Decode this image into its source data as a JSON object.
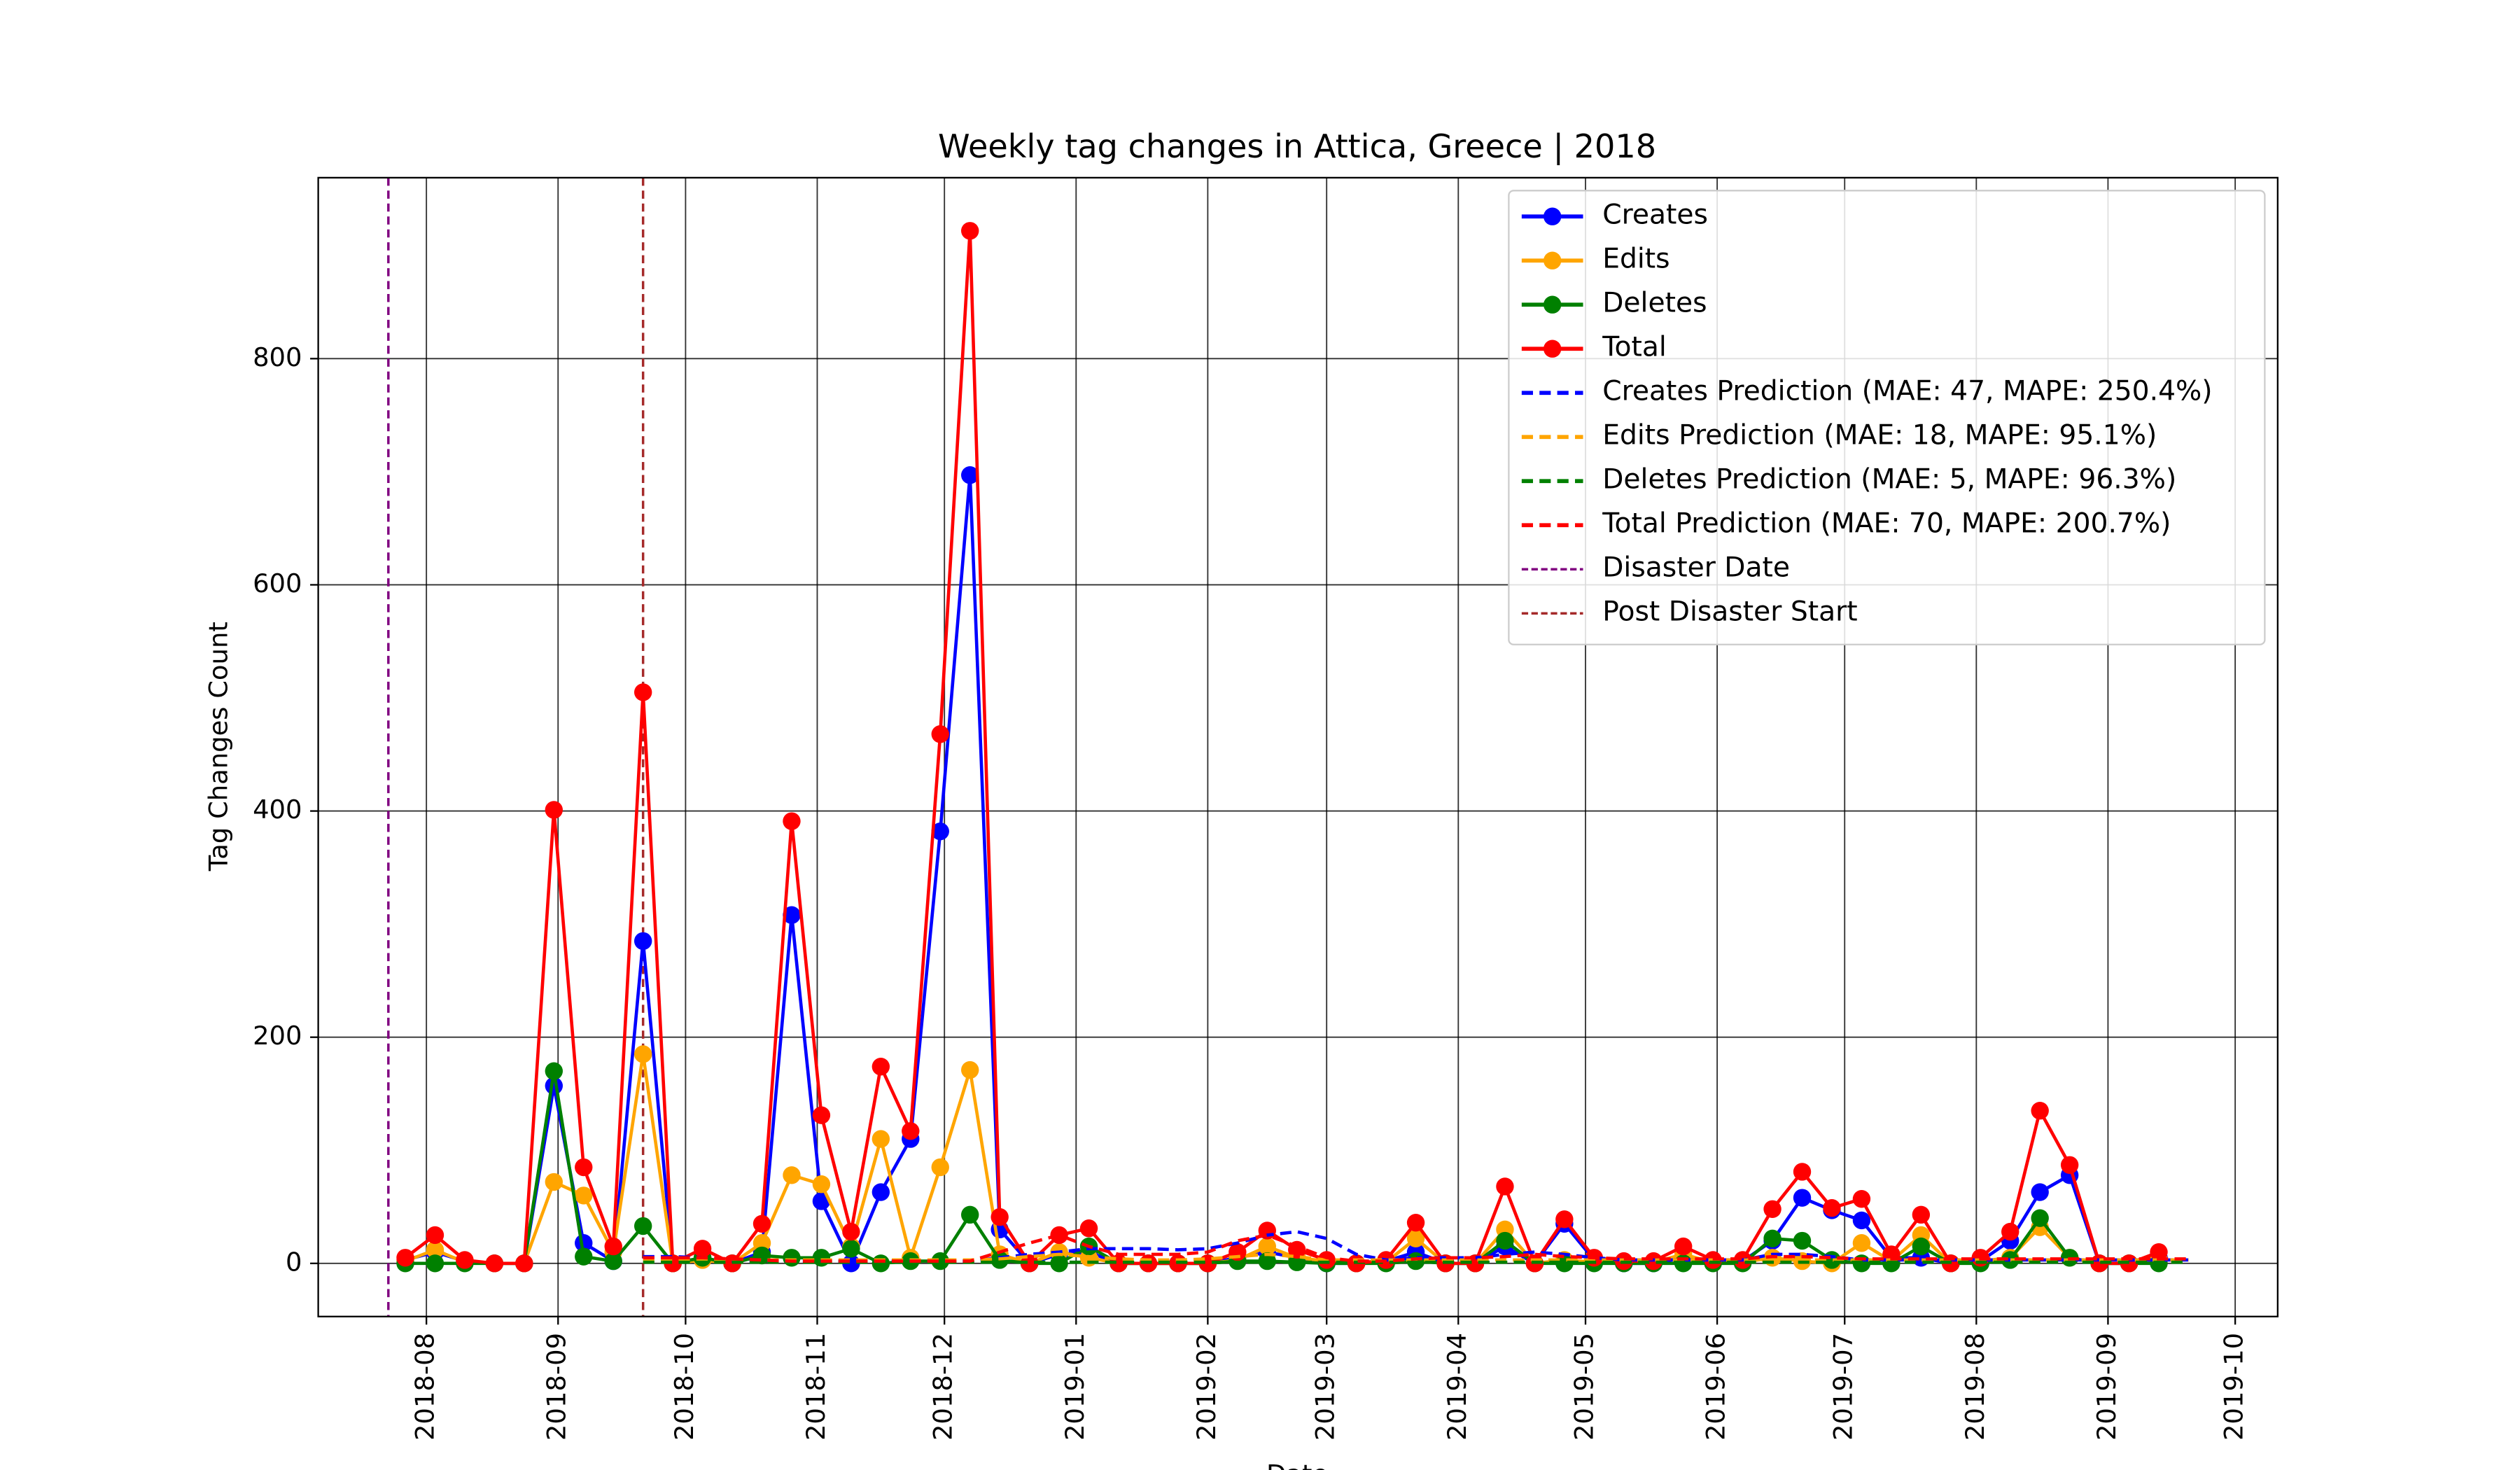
{
  "chart_data": {
    "type": "line",
    "title": "Weekly tag changes in Attica, Greece | 2018",
    "xlabel": "Date",
    "ylabel": "Tag Changes Count",
    "x": [
      0,
      1,
      2,
      3,
      4,
      5,
      6,
      7,
      8,
      9,
      10,
      11,
      12,
      13,
      14,
      15,
      16,
      17,
      18,
      19,
      20,
      21,
      22,
      23,
      24,
      25,
      26,
      27,
      28,
      29,
      30,
      31,
      32,
      33,
      34,
      35,
      36,
      37,
      38,
      39,
      40,
      41,
      42,
      43,
      44,
      45,
      46,
      47,
      48,
      49,
      50,
      51,
      52,
      53,
      54,
      55,
      56,
      57,
      58,
      59,
      60
    ],
    "xlim": [
      -2.93,
      63.0
    ],
    "xticks": [
      {
        "value": 0.71,
        "label": "2018-08"
      },
      {
        "value": 5.14,
        "label": "2018-09"
      },
      {
        "value": 9.43,
        "label": "2018-10"
      },
      {
        "value": 13.86,
        "label": "2018-11"
      },
      {
        "value": 18.14,
        "label": "2018-12"
      },
      {
        "value": 22.57,
        "label": "2019-01"
      },
      {
        "value": 27.0,
        "label": "2019-02"
      },
      {
        "value": 31.0,
        "label": "2019-03"
      },
      {
        "value": 35.43,
        "label": "2019-04"
      },
      {
        "value": 39.71,
        "label": "2019-05"
      },
      {
        "value": 44.14,
        "label": "2019-06"
      },
      {
        "value": 48.43,
        "label": "2019-07"
      },
      {
        "value": 52.86,
        "label": "2019-08"
      },
      {
        "value": 57.29,
        "label": "2019-09"
      },
      {
        "value": 61.57,
        "label": "2019-10"
      }
    ],
    "ylim": [
      -47,
      960
    ],
    "yticks": [
      0,
      200,
      400,
      600,
      800
    ],
    "grid": true,
    "legend": "upper right",
    "series": [
      {
        "name": "Creates",
        "color": "#0000ff",
        "style": "solid",
        "marker": true,
        "values": [
          3,
          10,
          2,
          0,
          0,
          157,
          18,
          2,
          285,
          0,
          5,
          0,
          10,
          308,
          55,
          0,
          63,
          110,
          382,
          697,
          30,
          0,
          8,
          10,
          0,
          0,
          0,
          0,
          5,
          10,
          5,
          0,
          0,
          2,
          10,
          0,
          0,
          15,
          0,
          35,
          3,
          0,
          0,
          5,
          2,
          2,
          20,
          58,
          47,
          38,
          5,
          5,
          0,
          2,
          20,
          63,
          78,
          0,
          0,
          5,
          null
        ]
      },
      {
        "name": "Edits",
        "color": "#ffa500",
        "style": "solid",
        "marker": true,
        "values": [
          2,
          12,
          1,
          0,
          0,
          72,
          60,
          10,
          185,
          0,
          3,
          0,
          18,
          78,
          70,
          15,
          110,
          5,
          85,
          171,
          8,
          0,
          10,
          5,
          0,
          0,
          0,
          0,
          3,
          15,
          5,
          2,
          0,
          1,
          22,
          0,
          0,
          30,
          0,
          3,
          1,
          1,
          1,
          8,
          1,
          1,
          5,
          2,
          0,
          18,
          2,
          25,
          0,
          2,
          5,
          32,
          5,
          0,
          0,
          3,
          null
        ]
      },
      {
        "name": "Deletes",
        "color": "#008000",
        "style": "solid",
        "marker": true,
        "values": [
          0,
          0,
          0,
          0,
          0,
          170,
          6,
          2,
          33,
          0,
          5,
          0,
          7,
          5,
          5,
          13,
          0,
          2,
          2,
          43,
          3,
          0,
          0,
          15,
          0,
          0,
          0,
          0,
          2,
          2,
          1,
          0,
          0,
          0,
          2,
          0,
          0,
          20,
          0,
          0,
          0,
          0,
          0,
          0,
          0,
          0,
          22,
          20,
          3,
          0,
          0,
          15,
          0,
          0,
          3,
          40,
          5,
          0,
          0,
          0,
          null
        ]
      },
      {
        "name": "Total",
        "color": "#ff0000",
        "style": "solid",
        "marker": true,
        "values": [
          5,
          25,
          3,
          0,
          0,
          401,
          85,
          15,
          505,
          0,
          13,
          0,
          35,
          391,
          131,
          28,
          174,
          117,
          468,
          913,
          41,
          0,
          25,
          31,
          0,
          0,
          0,
          0,
          10,
          29,
          12,
          3,
          0,
          3,
          36,
          0,
          0,
          68,
          0,
          39,
          5,
          2,
          2,
          15,
          3,
          3,
          48,
          81,
          49,
          57,
          8,
          43,
          0,
          5,
          28,
          135,
          87,
          0,
          0,
          10,
          null
        ]
      },
      {
        "name": "Creates Prediction (MAE: 47, MAPE: 250.4%)",
        "color": "#0000ff",
        "style": "dashed",
        "marker": false,
        "values": [
          null,
          null,
          null,
          null,
          null,
          null,
          null,
          null,
          6,
          6,
          5,
          2,
          2,
          2,
          2,
          2,
          2,
          2,
          2,
          2,
          5,
          8,
          10,
          13,
          13,
          13,
          12,
          13,
          18,
          25,
          28,
          22,
          8,
          3,
          5,
          5,
          5,
          8,
          10,
          8,
          5,
          3,
          3,
          3,
          3,
          3,
          8,
          8,
          6,
          3,
          3,
          3,
          3,
          3,
          3,
          3,
          3,
          3,
          3,
          3,
          3
        ]
      },
      {
        "name": "Edits Prediction (MAE: 18, MAPE: 95.1%)",
        "color": "#ffa500",
        "style": "dashed",
        "marker": false,
        "values": [
          null,
          null,
          null,
          null,
          null,
          null,
          null,
          null,
          3,
          3,
          3,
          3,
          3,
          3,
          3,
          3,
          3,
          3,
          3,
          3,
          4,
          6,
          8,
          6,
          4,
          3,
          3,
          4,
          6,
          8,
          6,
          3,
          3,
          3,
          3,
          3,
          3,
          3,
          3,
          3,
          3,
          3,
          3,
          3,
          3,
          3,
          3,
          3,
          3,
          3,
          3,
          3,
          3,
          3,
          3,
          3,
          3,
          3,
          3,
          3,
          3
        ]
      },
      {
        "name": "Deletes Prediction (MAE: 5, MAPE: 96.3%)",
        "color": "#008000",
        "style": "dashed",
        "marker": false,
        "values": [
          null,
          null,
          null,
          null,
          null,
          null,
          null,
          null,
          1,
          1,
          1,
          1,
          1,
          1,
          1,
          1,
          1,
          1,
          1,
          1,
          1,
          1,
          1,
          1,
          1,
          1,
          1,
          1,
          1,
          1,
          1,
          1,
          1,
          1,
          1,
          1,
          1,
          1,
          1,
          1,
          1,
          1,
          1,
          1,
          1,
          1,
          1,
          1,
          1,
          1,
          1,
          1,
          1,
          1,
          1,
          1,
          1,
          1,
          1,
          1,
          1
        ]
      },
      {
        "name": "Total Prediction (MAE: 70, MAPE: 200.7%)",
        "color": "#ff0000",
        "style": "dashed",
        "marker": false,
        "values": [
          null,
          null,
          null,
          null,
          null,
          null,
          null,
          null,
          5,
          5,
          5,
          4,
          3,
          2,
          2,
          2,
          2,
          2,
          2,
          2,
          10,
          18,
          25,
          15,
          8,
          8,
          8,
          10,
          20,
          25,
          15,
          5,
          2,
          2,
          4,
          5,
          5,
          6,
          8,
          6,
          5,
          4,
          4,
          4,
          4,
          4,
          6,
          6,
          5,
          4,
          4,
          4,
          4,
          4,
          4,
          4,
          4,
          4,
          4,
          4,
          4
        ]
      }
    ],
    "vlines": [
      {
        "name": "Disaster Date",
        "color": "#800080",
        "x": -0.57
      },
      {
        "name": "Post Disaster Start",
        "color": "#a52a2a",
        "x": 8
      }
    ]
  }
}
